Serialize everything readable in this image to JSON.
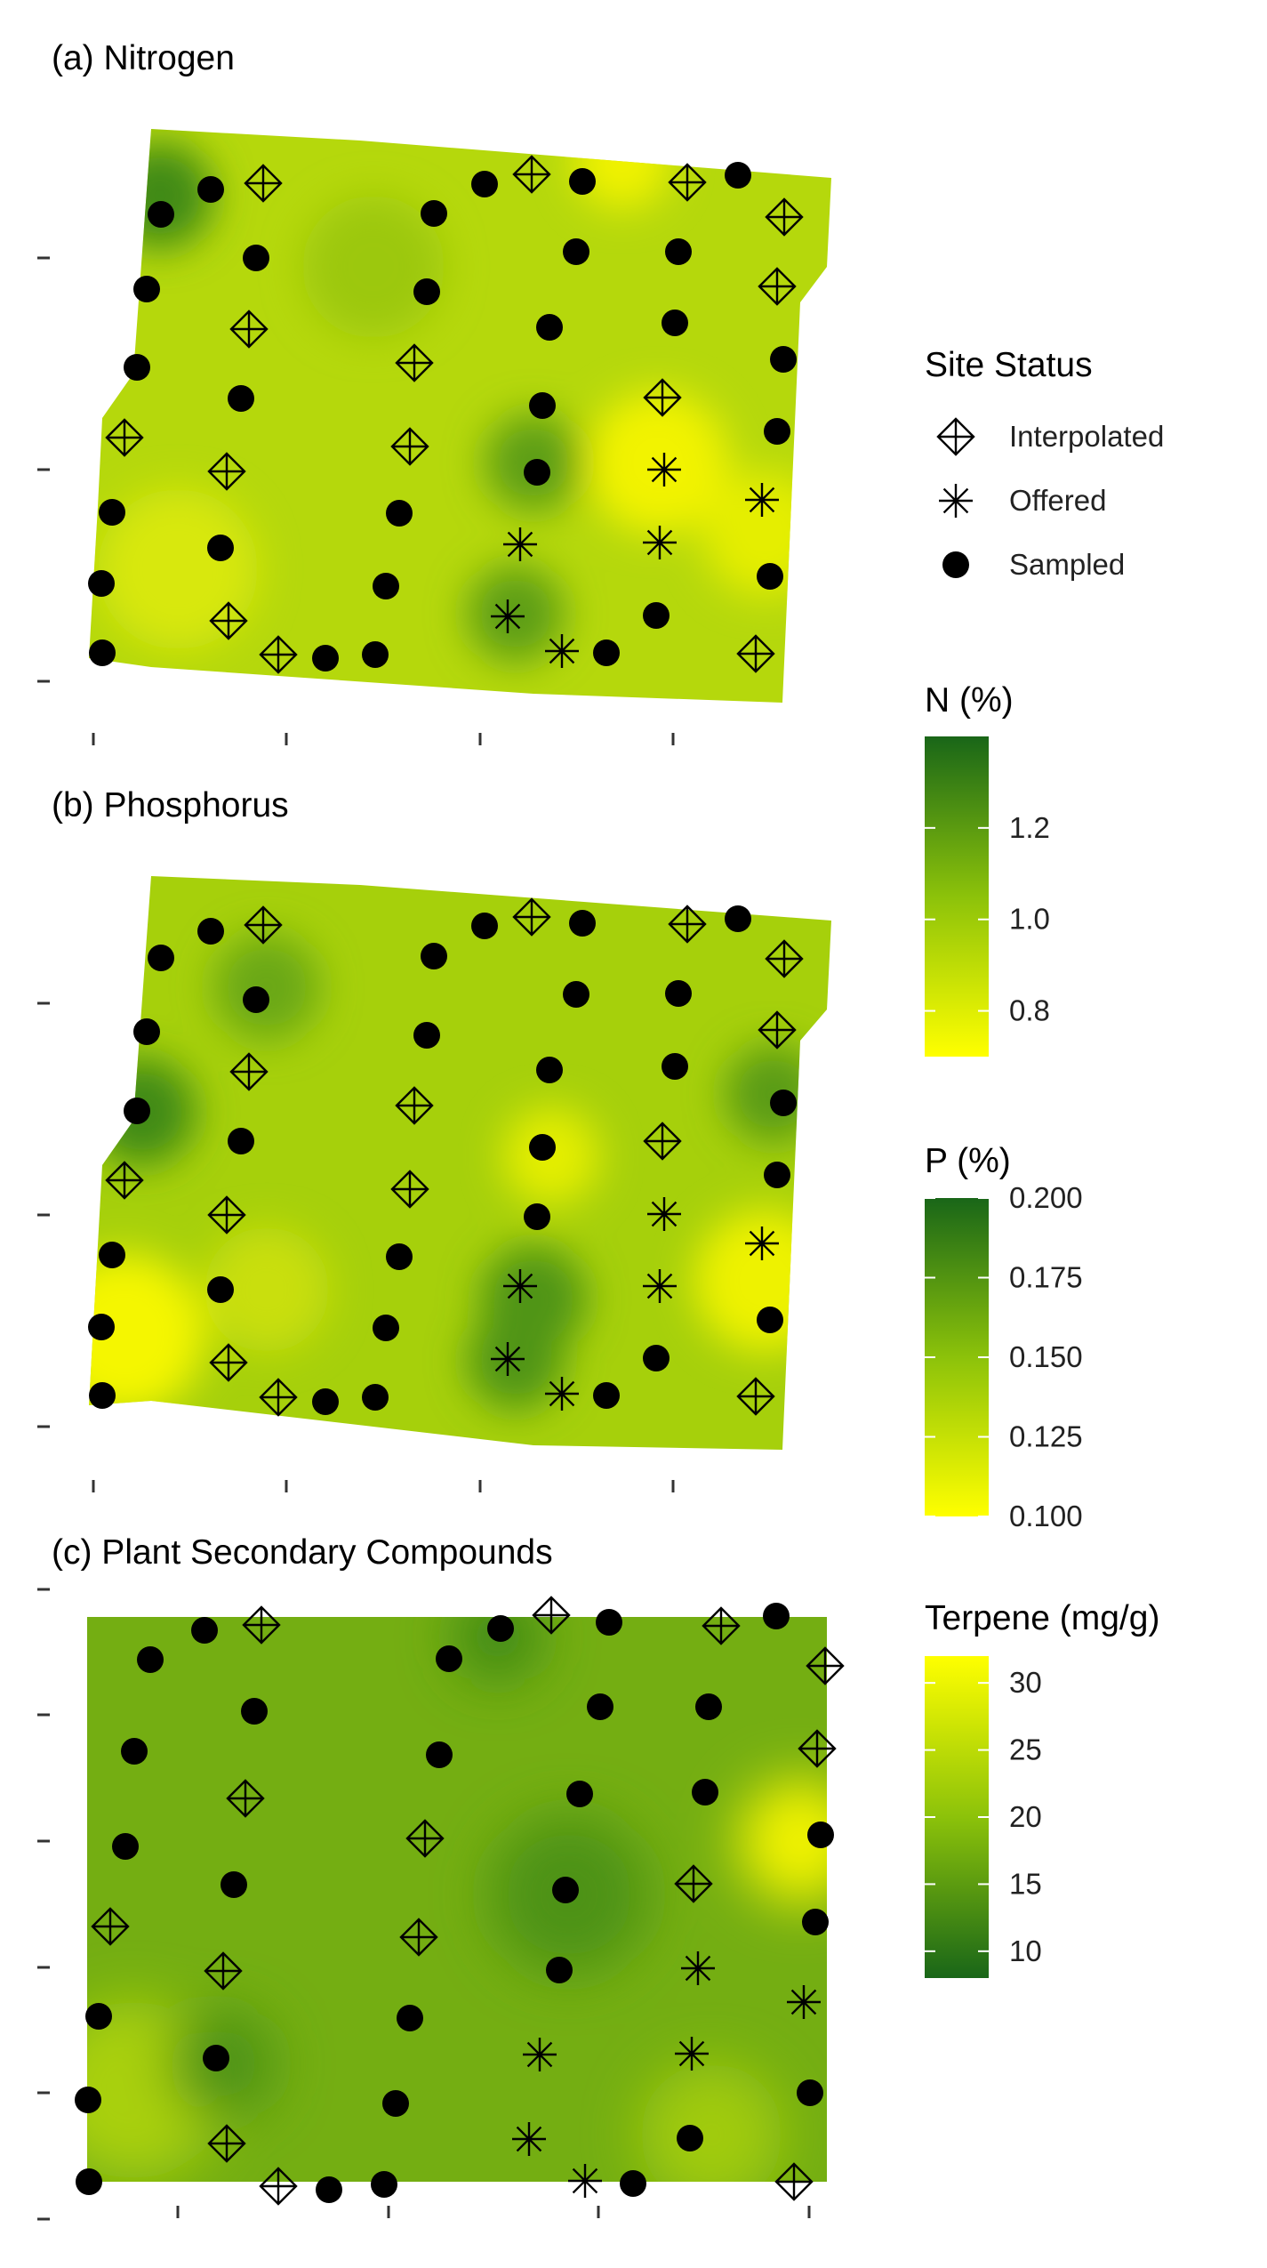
{
  "chart_data": [
    {
      "type": "heatmap",
      "title": "(a) Nitrogen",
      "legend_title": "N (%)",
      "legend_ticks": [
        "1.2",
        "1.0",
        "0.8"
      ],
      "legend_tick_values": [
        1.2,
        1.0,
        0.8
      ],
      "value_range": [
        0.7,
        1.4
      ],
      "colors": {
        "low": "#ffff00",
        "mid": "#9acd0a",
        "high": "#196618"
      }
    },
    {
      "type": "heatmap",
      "title": "(b) Phosphorus",
      "legend_title": "P (%)",
      "legend_ticks": [
        "0.200",
        "0.175",
        "0.150",
        "0.125",
        "0.100"
      ],
      "legend_tick_values": [
        0.2,
        0.175,
        0.15,
        0.125,
        0.1
      ],
      "value_range": [
        0.1,
        0.2
      ],
      "colors": {
        "low": "#ffff00",
        "mid": "#9acd0a",
        "high": "#196618"
      }
    },
    {
      "type": "heatmap",
      "title": "(c) Plant Secondary Compounds",
      "legend_title": "Terpene (mg/g)",
      "legend_ticks": [
        "30",
        "25",
        "20",
        "15",
        "10"
      ],
      "legend_tick_values": [
        30,
        25,
        20,
        15,
        10
      ],
      "value_range": [
        8,
        32
      ],
      "colors": {
        "low": "#196618",
        "mid": "#9acd0a",
        "high": "#ffff00"
      }
    }
  ],
  "site_legend": {
    "title": "Site Status",
    "items": [
      {
        "label": "Interpolated",
        "symbol": "diamond-plus"
      },
      {
        "label": "Offered",
        "symbol": "asterisk"
      },
      {
        "label": "Sampled",
        "symbol": "filled-circle"
      }
    ]
  }
}
